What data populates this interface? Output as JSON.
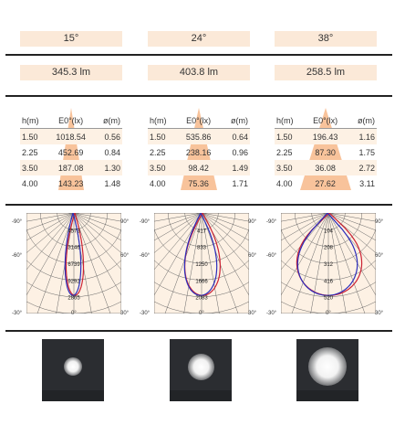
{
  "angles": [
    {
      "beam": "15°",
      "flux": "345.3 lm",
      "headers": [
        "h(m)",
        "E0°(lx)",
        "ø(m)"
      ],
      "rows": [
        [
          "1.50",
          "1018.54",
          "0.56"
        ],
        [
          "2.25",
          "452.69",
          "0.84"
        ],
        [
          "3.50",
          "187.08",
          "1.30"
        ],
        [
          "4.00",
          "143.23",
          "1.48"
        ]
      ],
      "polar_labels": [
        "4573",
        "3146",
        "6739",
        "9292",
        "2865"
      ],
      "spot": 0.3
    },
    {
      "beam": "24°",
      "flux": "403.8 lm",
      "headers": [
        "h(m)",
        "E0°(lx)",
        "ø(m)"
      ],
      "rows": [
        [
          "1.50",
          "535.86",
          "0.64"
        ],
        [
          "2.25",
          "238.16",
          "0.96"
        ],
        [
          "3.50",
          "98.42",
          "1.49"
        ],
        [
          "4.00",
          "75.36",
          "1.71"
        ]
      ],
      "polar_labels": [
        "417",
        "833",
        "1250",
        "1666",
        "2083"
      ],
      "spot": 0.42
    },
    {
      "beam": "38°",
      "flux": "258.5 lm",
      "headers": [
        "h(m)",
        "E0°(lx)",
        "ø(m)"
      ],
      "rows": [
        [
          "1.50",
          "196.43",
          "1.16"
        ],
        [
          "2.25",
          "87.30",
          "1.75"
        ],
        [
          "3.50",
          "36.08",
          "2.72"
        ],
        [
          "4.00",
          "27.62",
          "3.11"
        ]
      ],
      "polar_labels": [
        "104",
        "208",
        "312",
        "416",
        "520"
      ],
      "spot": 0.62
    }
  ],
  "polar_axis": {
    "top_left": "-90°",
    "top_right": "90°",
    "mid_left": "-60°",
    "mid_right": "60°",
    "bottom_left": "-30°",
    "bottom_center": "0°",
    "bottom_right": "30°"
  },
  "colors": {
    "header_band": "#fbe9d8",
    "row_band": "#fdf1e4",
    "cone": "#f7b98a",
    "curve_a": "#cc2233",
    "curve_b": "#2b2dbb"
  }
}
